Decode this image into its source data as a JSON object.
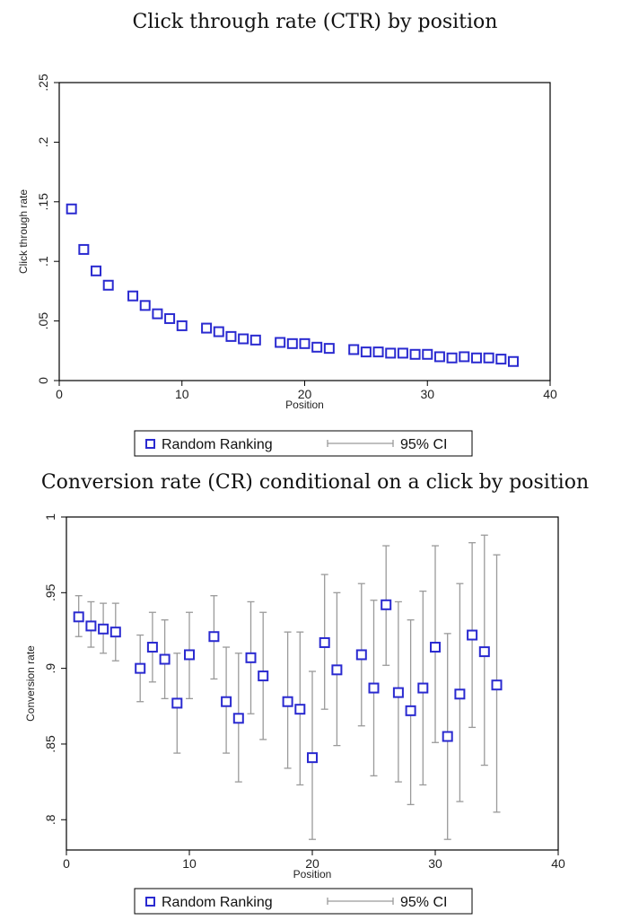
{
  "chart_data": [
    {
      "type": "scatter",
      "title": "Click through rate (CTR) by position",
      "xlabel": "Position",
      "ylabel": "Click through rate",
      "xlim": [
        0,
        40
      ],
      "ylim": [
        0,
        0.25
      ],
      "x_ticks": [
        0,
        10,
        20,
        30,
        40
      ],
      "x_tick_labels": [
        "0",
        "10",
        "20",
        "30",
        "40"
      ],
      "y_ticks": [
        0,
        0.05,
        0.1,
        0.15,
        0.2,
        0.25
      ],
      "y_tick_labels": [
        "0",
        ".05",
        ".1",
        ".15",
        ".2",
        ".25"
      ],
      "grid": false,
      "legend": {
        "placement": "bottom",
        "entries": [
          "Random Ranking",
          "95% CI"
        ]
      },
      "series": [
        {
          "name": "Random Ranking",
          "marker": "hollow-square",
          "color": "#2a2ad0",
          "points": [
            {
              "x": 1,
              "y": 0.144
            },
            {
              "x": 2,
              "y": 0.11
            },
            {
              "x": 3,
              "y": 0.092
            },
            {
              "x": 4,
              "y": 0.08
            },
            {
              "x": 6,
              "y": 0.071
            },
            {
              "x": 7,
              "y": 0.063
            },
            {
              "x": 8,
              "y": 0.056
            },
            {
              "x": 9,
              "y": 0.052
            },
            {
              "x": 10,
              "y": 0.046
            },
            {
              "x": 12,
              "y": 0.044
            },
            {
              "x": 13,
              "y": 0.041
            },
            {
              "x": 14,
              "y": 0.037
            },
            {
              "x": 15,
              "y": 0.035
            },
            {
              "x": 16,
              "y": 0.034
            },
            {
              "x": 18,
              "y": 0.032
            },
            {
              "x": 19,
              "y": 0.031
            },
            {
              "x": 20,
              "y": 0.031
            },
            {
              "x": 21,
              "y": 0.028
            },
            {
              "x": 22,
              "y": 0.027
            },
            {
              "x": 24,
              "y": 0.026
            },
            {
              "x": 25,
              "y": 0.024
            },
            {
              "x": 26,
              "y": 0.024
            },
            {
              "x": 27,
              "y": 0.023
            },
            {
              "x": 28,
              "y": 0.023
            },
            {
              "x": 29,
              "y": 0.022
            },
            {
              "x": 30,
              "y": 0.022
            },
            {
              "x": 31,
              "y": 0.02
            },
            {
              "x": 32,
              "y": 0.019
            },
            {
              "x": 33,
              "y": 0.02
            },
            {
              "x": 34,
              "y": 0.019
            },
            {
              "x": 35,
              "y": 0.019
            },
            {
              "x": 36,
              "y": 0.018
            },
            {
              "x": 37,
              "y": 0.016
            }
          ]
        }
      ]
    },
    {
      "type": "scatter",
      "title": "Conversion rate (CR) conditional on a click by position",
      "xlabel": "Position",
      "ylabel": "Conversion rate",
      "xlim": [
        0,
        40
      ],
      "ylim": [
        0.78,
        1.0
      ],
      "x_ticks": [
        0,
        10,
        20,
        30,
        40
      ],
      "x_tick_labels": [
        "0",
        "10",
        "20",
        "30",
        "40"
      ],
      "y_ticks": [
        0.8,
        0.85,
        0.9,
        0.95,
        1
      ],
      "y_tick_labels": [
        ".8",
        ".85",
        ".9",
        ".95",
        "1"
      ],
      "grid": false,
      "legend": {
        "placement": "bottom",
        "entries": [
          "Random Ranking",
          "95% CI"
        ]
      },
      "series": [
        {
          "name": "Random Ranking",
          "marker": "hollow-square",
          "color": "#2a2ad0",
          "ci_color": "#9a9a9a",
          "points": [
            {
              "x": 1,
              "y": 0.934,
              "lo": 0.921,
              "hi": 0.948
            },
            {
              "x": 2,
              "y": 0.928,
              "lo": 0.914,
              "hi": 0.944
            },
            {
              "x": 3,
              "y": 0.926,
              "lo": 0.91,
              "hi": 0.943
            },
            {
              "x": 4,
              "y": 0.924,
              "lo": 0.905,
              "hi": 0.943
            },
            {
              "x": 6,
              "y": 0.9,
              "lo": 0.878,
              "hi": 0.922
            },
            {
              "x": 7,
              "y": 0.914,
              "lo": 0.891,
              "hi": 0.937
            },
            {
              "x": 8,
              "y": 0.906,
              "lo": 0.88,
              "hi": 0.932
            },
            {
              "x": 9,
              "y": 0.877,
              "lo": 0.844,
              "hi": 0.91
            },
            {
              "x": 10,
              "y": 0.909,
              "lo": 0.88,
              "hi": 0.937
            },
            {
              "x": 12,
              "y": 0.921,
              "lo": 0.893,
              "hi": 0.948
            },
            {
              "x": 13,
              "y": 0.878,
              "lo": 0.844,
              "hi": 0.914
            },
            {
              "x": 14,
              "y": 0.867,
              "lo": 0.825,
              "hi": 0.91
            },
            {
              "x": 15,
              "y": 0.907,
              "lo": 0.87,
              "hi": 0.944
            },
            {
              "x": 16,
              "y": 0.895,
              "lo": 0.853,
              "hi": 0.937
            },
            {
              "x": 18,
              "y": 0.878,
              "lo": 0.834,
              "hi": 0.924
            },
            {
              "x": 19,
              "y": 0.873,
              "lo": 0.823,
              "hi": 0.924
            },
            {
              "x": 20,
              "y": 0.841,
              "lo": 0.787,
              "hi": 0.898
            },
            {
              "x": 21,
              "y": 0.917,
              "lo": 0.873,
              "hi": 0.962
            },
            {
              "x": 22,
              "y": 0.899,
              "lo": 0.849,
              "hi": 0.95
            },
            {
              "x": 24,
              "y": 0.909,
              "lo": 0.862,
              "hi": 0.956
            },
            {
              "x": 25,
              "y": 0.887,
              "lo": 0.829,
              "hi": 0.945
            },
            {
              "x": 26,
              "y": 0.942,
              "lo": 0.902,
              "hi": 0.981
            },
            {
              "x": 27,
              "y": 0.884,
              "lo": 0.825,
              "hi": 0.944
            },
            {
              "x": 28,
              "y": 0.872,
              "lo": 0.81,
              "hi": 0.932
            },
            {
              "x": 29,
              "y": 0.887,
              "lo": 0.823,
              "hi": 0.951
            },
            {
              "x": 30,
              "y": 0.914,
              "lo": 0.851,
              "hi": 0.981
            },
            {
              "x": 31,
              "y": 0.855,
              "lo": 0.787,
              "hi": 0.923
            },
            {
              "x": 32,
              "y": 0.883,
              "lo": 0.812,
              "hi": 0.956
            },
            {
              "x": 33,
              "y": 0.922,
              "lo": 0.861,
              "hi": 0.983
            },
            {
              "x": 34,
              "y": 0.911,
              "lo": 0.836,
              "hi": 0.988
            },
            {
              "x": 35,
              "y": 0.889,
              "lo": 0.805,
              "hi": 0.975
            }
          ]
        }
      ]
    }
  ]
}
